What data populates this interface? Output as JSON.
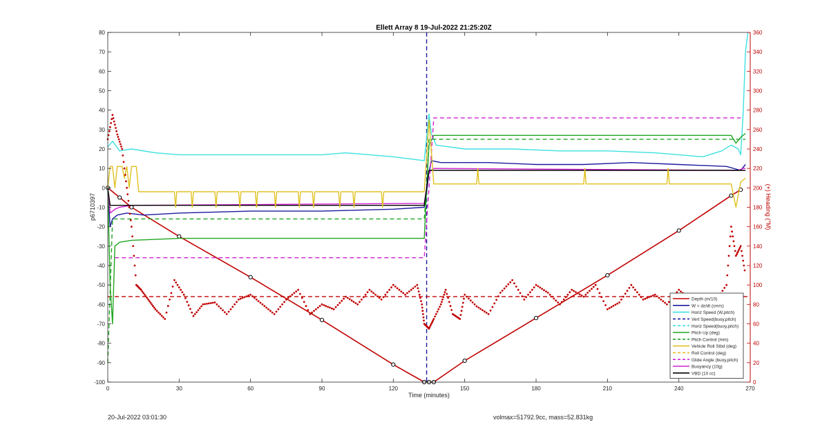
{
  "chart_data": {
    "type": "line",
    "title": "Ellett Array 8 19-Jul-2022 21:25:20Z",
    "xlabel": "Time (minutes)",
    "ylabel": "p6710397",
    "y2label": "(+) Heading (°M)",
    "xlim": [
      0,
      270
    ],
    "ylim": [
      -100,
      80
    ],
    "y2lim": [
      0,
      360
    ],
    "xticks": [
      "0",
      "30",
      "60",
      "90",
      "120",
      "150",
      "180",
      "210",
      "240",
      "270"
    ],
    "yticks": [
      "80",
      "70",
      "60",
      "50",
      "40",
      "30",
      "20",
      "10",
      "0",
      "-10",
      "-20",
      "-30",
      "-40",
      "-50",
      "-60",
      "-70",
      "-80",
      "-90",
      "-100"
    ],
    "y2ticks": [
      "360",
      "340",
      "320",
      "300",
      "280",
      "260",
      "240",
      "220",
      "200",
      "180",
      "160",
      "140",
      "120",
      "100",
      "80",
      "60",
      "40",
      "20",
      "0"
    ],
    "legend_position": "bottom-right",
    "grid": false,
    "legend": [
      {
        "label": "Depth (m/10)",
        "color": "#c00000",
        "style": "solid"
      },
      {
        "label": "W = dz/dt (cm/s)",
        "color": "#1a1aa0",
        "style": "solid"
      },
      {
        "label": "Horiz Speed (W,pitch)",
        "color": "#3de0e0",
        "style": "solid"
      },
      {
        "label": "Vert Speed(buoy,pitch)",
        "color": "#1a1aa0",
        "style": "dashed"
      },
      {
        "label": "Horiz Speed(buoy,pitch)",
        "color": "#3de0e0",
        "style": "dashed"
      },
      {
        "label": "Pitch Up (deg)",
        "color": "#1fa51f",
        "style": "solid"
      },
      {
        "label": "Pitch Control (mm)",
        "color": "#1fa51f",
        "style": "dashed"
      },
      {
        "label": "Vehicle Roll Stbd (deg)",
        "color": "#e0c020",
        "style": "solid"
      },
      {
        "label": "Roll Control (deg)",
        "color": "#e0c020",
        "style": "dashed"
      },
      {
        "label": "Glide Angle (buoy,pitch)",
        "color": "#d020d0",
        "style": "dashed"
      },
      {
        "label": "Buoyancy (10g)",
        "color": "#d020d0",
        "style": "solid"
      },
      {
        "label": "VBD (10 cc)",
        "color": "#000000",
        "style": "solid"
      }
    ],
    "series": [
      {
        "name": "Depth (m/10)",
        "axis": "left",
        "color": "#c00000",
        "style": "solid",
        "x": [
          0,
          5,
          10,
          30,
          60,
          90,
          120,
          133,
          135,
          137,
          150,
          180,
          210,
          240,
          262,
          266
        ],
        "y": [
          0,
          -5,
          -10,
          -25,
          -46,
          -68,
          -91,
          -100,
          -100,
          -100,
          -89,
          -67,
          -45,
          -22,
          -4,
          -1
        ]
      },
      {
        "name": "W = dz/dt (cm/s)",
        "axis": "left",
        "color": "#1a1aa0",
        "style": "solid",
        "x": [
          0,
          1,
          2,
          4,
          8,
          15,
          30,
          60,
          90,
          120,
          133,
          134,
          135,
          136,
          140,
          160,
          180,
          200,
          220,
          240,
          260,
          266,
          268
        ],
        "y": [
          0,
          -20,
          -16,
          -14,
          -13,
          -14,
          -13,
          -12,
          -12,
          -11,
          -10,
          -2,
          8,
          14,
          13,
          13,
          12,
          12,
          13,
          12,
          11,
          9,
          12
        ]
      },
      {
        "name": "Horiz Speed (W,pitch)",
        "axis": "left",
        "color": "#3de0e0",
        "style": "solid",
        "x": [
          0,
          2,
          5,
          10,
          20,
          30,
          50,
          70,
          90,
          100,
          120,
          133,
          135,
          136,
          138,
          150,
          170,
          190,
          210,
          230,
          250,
          258,
          262,
          265,
          266,
          267,
          268,
          269
        ],
        "y": [
          21,
          24,
          19,
          20,
          18,
          17,
          17,
          17,
          17,
          18,
          16,
          14,
          38,
          28,
          22,
          20,
          20,
          19,
          19,
          18,
          16,
          19,
          22,
          20,
          17,
          38,
          70,
          80
        ]
      },
      {
        "name": "Pitch Up (deg)",
        "axis": "left",
        "color": "#1fa51f",
        "style": "solid",
        "x": [
          0,
          1,
          2,
          3,
          5,
          10,
          30,
          60,
          90,
          120,
          133,
          134,
          135,
          137,
          150,
          180,
          210,
          240,
          262,
          264,
          266,
          268
        ],
        "y": [
          0,
          -50,
          -70,
          -30,
          -28,
          -27,
          -26,
          -26,
          -26,
          -26,
          -26,
          0,
          22,
          27,
          27,
          27,
          27,
          27,
          27,
          23,
          26,
          28
        ]
      },
      {
        "name": "Pitch Control (mm)",
        "axis": "left",
        "color": "#1fa51f",
        "style": "dashed",
        "x": [
          0,
          2,
          4,
          133,
          134,
          135,
          137,
          268
        ],
        "y": [
          -90,
          -16,
          -16,
          -16,
          0,
          25,
          25,
          25
        ]
      },
      {
        "name": "Glide Angle (buoy,pitch)",
        "axis": "left",
        "color": "#d020d0",
        "style": "dashed",
        "x": [
          3,
          133,
          137,
          266
        ],
        "y": [
          -36,
          -36,
          36,
          36
        ]
      },
      {
        "name": "Buoyancy (10g)",
        "axis": "left",
        "color": "#d020d0",
        "style": "solid",
        "x": [
          0,
          1,
          3,
          5,
          10,
          133,
          134,
          135,
          137,
          265,
          267,
          268
        ],
        "y": [
          0,
          -13,
          -11,
          -10,
          -9,
          -8,
          0,
          8,
          10,
          9,
          10,
          10
        ]
      },
      {
        "name": "VBD (10 cc)",
        "axis": "left",
        "color": "#000000",
        "style": "solid",
        "x": [
          0,
          1,
          2,
          133,
          135,
          136,
          265,
          268
        ],
        "y": [
          0,
          -9,
          -9,
          -9,
          9,
          9,
          9,
          9
        ]
      },
      {
        "name": "Vehicle Roll Stbd (deg)",
        "axis": "left",
        "color": "#e0c020",
        "style": "solid",
        "x": [
          0,
          1,
          2,
          3,
          4,
          5,
          6,
          7,
          8,
          9,
          10,
          11,
          12,
          13,
          28,
          28.5,
          29,
          35,
          35.5,
          36,
          45,
          45.5,
          46,
          55,
          55.5,
          56,
          62,
          62.5,
          63,
          70,
          70.5,
          71,
          80,
          80.5,
          81,
          86,
          86.5,
          87,
          97,
          97.5,
          98,
          103,
          103.5,
          104,
          115,
          115.5,
          116,
          133,
          135,
          137,
          150,
          155,
          155.5,
          156,
          200,
          200.5,
          201,
          235,
          235.5,
          236,
          262,
          264,
          266,
          268
        ],
        "y": [
          0,
          11,
          11,
          0,
          11,
          11,
          11,
          5,
          11,
          0,
          11,
          11,
          11,
          -2,
          -2,
          -10,
          -2,
          -2,
          -10,
          -2,
          -2,
          -10,
          -2,
          -2,
          -10,
          -2,
          -2,
          -10,
          -2,
          -2,
          -10,
          -2,
          -2,
          -10,
          -2,
          -2,
          -10,
          -2,
          -2,
          -10,
          -2,
          -2,
          -10,
          -2,
          -2,
          -10,
          -2,
          -2,
          35,
          2,
          2,
          2,
          10,
          2,
          2,
          10,
          2,
          2,
          10,
          2,
          2,
          -10,
          3,
          5
        ]
      },
      {
        "name": "Heading",
        "axis": "right",
        "color": "#c00000",
        "style": "dots",
        "x": [
          0,
          2,
          4,
          6,
          8,
          10,
          12,
          14,
          17,
          20,
          24,
          28,
          32,
          36,
          40,
          45,
          50,
          55,
          60,
          65,
          70,
          75,
          80,
          85,
          90,
          95,
          100,
          105,
          110,
          115,
          120,
          125,
          130,
          132,
          133,
          135,
          137,
          140,
          142,
          145,
          148,
          150,
          155,
          160,
          165,
          170,
          175,
          180,
          185,
          190,
          195,
          200,
          205,
          210,
          215,
          220,
          225,
          230,
          235,
          240,
          245,
          250,
          255,
          260,
          262,
          264,
          266,
          268
        ],
        "y": [
          250,
          275,
          255,
          240,
          200,
          160,
          100,
          95,
          85,
          75,
          65,
          105,
          90,
          68,
          80,
          82,
          70,
          85,
          90,
          80,
          70,
          85,
          95,
          70,
          80,
          75,
          88,
          80,
          95,
          85,
          100,
          90,
          100,
          80,
          60,
          55,
          65,
          80,
          95,
          70,
          65,
          90,
          78,
          70,
          92,
          105,
          85,
          100,
          92,
          80,
          95,
          88,
          100,
          75,
          82,
          100,
          85,
          90,
          80,
          95,
          85,
          90,
          82,
          100,
          160,
          130,
          140,
          110
        ]
      }
    ],
    "reference_lines": [
      {
        "orientation": "vertical",
        "axis": "left",
        "x": 134,
        "color": "#1a1aa0",
        "style": "dashed"
      },
      {
        "orientation": "horizontal",
        "axis": "left",
        "y": -56,
        "color": "#c00000",
        "style": "dashed"
      }
    ]
  },
  "footer": {
    "timestamp": "20-Jul-2022 03:01:30",
    "vol_mass": "volmax=51792.9cc, mass=52.831kg"
  }
}
